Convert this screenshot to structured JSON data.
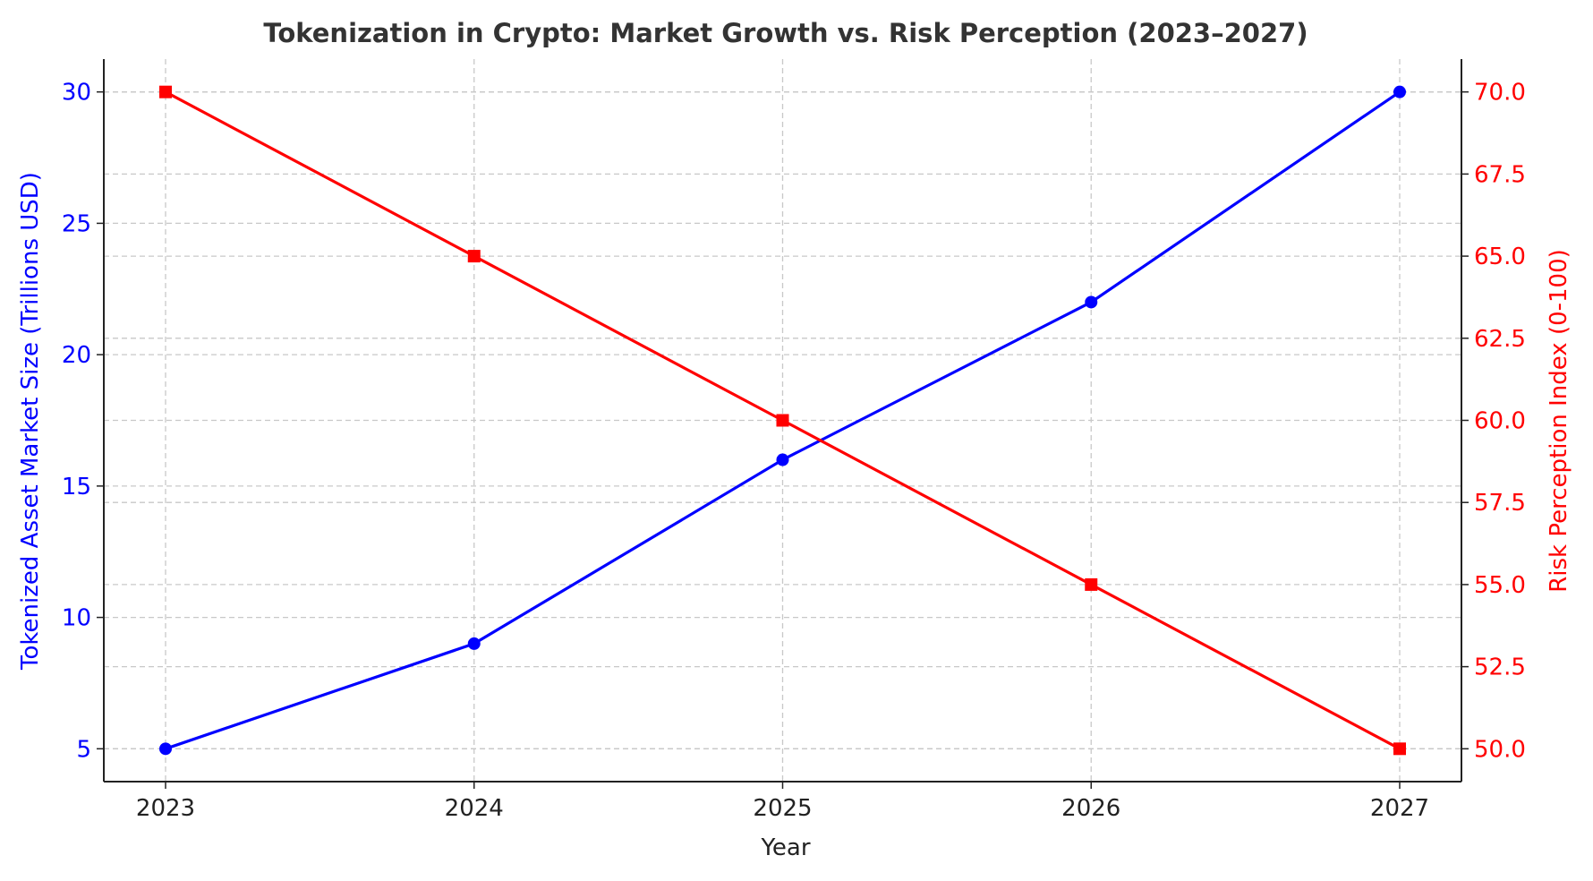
{
  "chart_data": {
    "type": "line",
    "title": "Tokenization in Crypto: Market Growth vs. Risk Perception (2023–2027)",
    "xlabel": "Year",
    "ylabel_left": "Tokenized Asset Market Size (Trillions USD)",
    "ylabel_right": "Risk Perception Index (0-100)",
    "categories": [
      "2023",
      "2024",
      "2025",
      "2026",
      "2027"
    ],
    "grid": true,
    "axes": {
      "left": {
        "ylim": [
          3.75,
          31.25
        ],
        "ticks": [
          5,
          10,
          15,
          20,
          25,
          30
        ],
        "color": "#0000ff"
      },
      "right": {
        "ylim": [
          49.0,
          71.0
        ],
        "ticks": [
          "50.0",
          "52.5",
          "55.0",
          "57.5",
          "60.0",
          "62.5",
          "65.0",
          "67.5",
          "70.0"
        ],
        "color": "#ff0000"
      }
    },
    "series": [
      {
        "axis": "left",
        "values": [
          5,
          9,
          16,
          22,
          30
        ],
        "color": "#0000ff",
        "marker": "circle"
      },
      {
        "axis": "right",
        "values": [
          70,
          65,
          60,
          55,
          50
        ],
        "color": "#ff0000",
        "marker": "square"
      }
    ]
  }
}
